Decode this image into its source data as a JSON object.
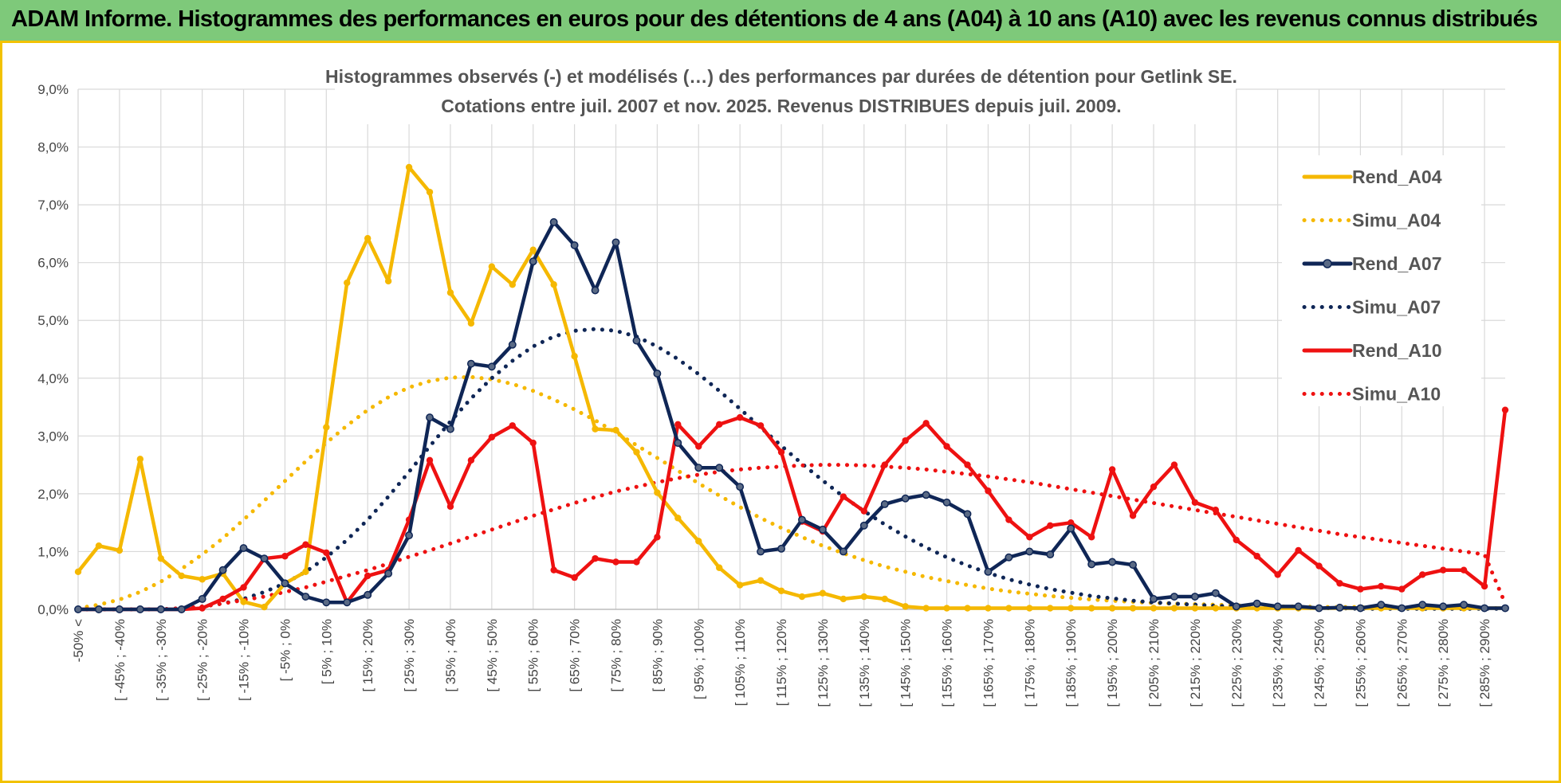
{
  "header": {
    "title": "ADAM Informe. Histogrammes des performances en euros pour des détentions de 4 ans (A04) à 10 ans (A10) avec les revenus connus distribués"
  },
  "colors": {
    "banner": "#7ec97a",
    "frame": "#f2c200",
    "A04": "#f5b800",
    "A07": "#0f2656",
    "A10": "#ee1111",
    "grid": "#d9d9d9"
  },
  "chart_data": {
    "type": "line",
    "title_line1": "Histogrammes observés (-) et modélisés (…) des performances par durées de détention pour Getlink SE.",
    "title_line2": "Cotations entre juil. 2007 et nov. 2025. Revenus DISTRIBUES depuis juil. 2009.",
    "y_unit": "%",
    "ylim": [
      0,
      9
    ],
    "yticks": [
      "0,0%",
      "1,0%",
      "2,0%",
      "3,0%",
      "4,0%",
      "5,0%",
      "6,0%",
      "7,0%",
      "8,0%",
      "9,0%"
    ],
    "x_tick_labels": [
      "-50% <",
      "[ -45% ; -40%",
      "[ -35% ; -30%",
      "[ -25% ; -20%",
      "[ -15% ; -10%",
      "[ -5% ; 0%",
      "[ 5% ; 10%",
      "[ 15% ; 20%",
      "[ 25% ; 30%",
      "[ 35% ; 40%",
      "[ 45% ; 50%",
      "[ 55% ; 60%",
      "[ 65% ; 70%",
      "[ 75% ; 80%",
      "[ 85% ; 90%",
      "[ 95% ; 100%",
      "[ 105% ; 110%",
      "[ 115% ; 120%",
      "[ 125% ; 130%",
      "[ 135% ; 140%",
      "[ 145% ; 150%",
      "[ 155% ; 160%",
      "[ 165% ; 170%",
      "[ 175% ; 180%",
      "[ 185% ; 190%",
      "[ 195% ; 200%",
      "[ 205% ; 210%",
      "[ 215% ; 220%",
      "[ 225% ; 230%",
      "[ 235% ; 240%",
      "[ 245% ; 250%",
      "[ 255% ; 260%",
      "[ 265% ; 270%",
      "[ 275% ; 280%",
      "[ 285% ; 290%"
    ],
    "n_points": 70,
    "legend_position": "right",
    "series": [
      {
        "name": "Rend_A04",
        "style": "solid",
        "color": "#f5b800",
        "markers": false,
        "values": [
          0.65,
          1.1,
          1.02,
          2.6,
          0.88,
          0.58,
          0.52,
          0.62,
          0.13,
          0.04,
          0.45,
          0.65,
          3.15,
          5.65,
          6.42,
          5.68,
          7.65,
          7.22,
          5.48,
          4.95,
          5.93,
          5.62,
          6.22,
          5.62,
          4.38,
          3.12,
          3.1,
          2.72,
          2.02,
          1.58,
          1.18,
          0.72,
          0.42,
          0.5,
          0.32,
          0.22,
          0.28,
          0.18,
          0.22,
          0.18,
          0.05,
          0.02,
          0.02,
          0.02,
          0.02,
          0.02,
          0.02,
          0.02,
          0.02,
          0.02,
          0.02,
          0.02,
          0.02,
          0.02,
          0.02,
          0.02,
          0.02,
          0.02,
          0.02,
          0.02,
          0.02,
          0.02,
          0.02,
          0.02,
          0.02,
          0.02,
          0.02,
          0.02,
          0.02,
          0.02
        ]
      },
      {
        "name": "Simu_A04",
        "style": "dotted",
        "color": "#f5b800",
        "markers": false,
        "values": [
          0.02,
          0.08,
          0.17,
          0.3,
          0.48,
          0.7,
          0.95,
          1.23,
          1.55,
          1.88,
          2.22,
          2.56,
          2.88,
          3.18,
          3.45,
          3.67,
          3.84,
          3.95,
          4.01,
          4.02,
          3.98,
          3.9,
          3.78,
          3.63,
          3.46,
          3.27,
          3.06,
          2.84,
          2.62,
          2.4,
          2.18,
          1.97,
          1.77,
          1.58,
          1.41,
          1.25,
          1.1,
          0.97,
          0.85,
          0.74,
          0.65,
          0.56,
          0.49,
          0.42,
          0.36,
          0.31,
          0.27,
          0.23,
          0.2,
          0.17,
          0.15,
          0.13,
          0.11,
          0.1,
          0.09,
          0.08,
          0.07,
          0.06,
          0.05,
          0.05,
          0.04,
          0.04,
          0.04,
          0.03,
          0.03,
          0.03,
          0.03,
          0.03,
          0.02,
          0.02
        ]
      },
      {
        "name": "Rend_A07",
        "style": "solid",
        "color": "#0f2656",
        "markers": true,
        "values": [
          0,
          0,
          0,
          0,
          0,
          0,
          0.18,
          0.68,
          1.06,
          0.88,
          0.45,
          0.22,
          0.12,
          0.12,
          0.25,
          0.62,
          1.28,
          3.32,
          3.12,
          4.25,
          4.2,
          4.58,
          6.02,
          6.7,
          6.3,
          5.52,
          6.35,
          4.65,
          4.08,
          2.88,
          2.45,
          2.45,
          2.12,
          1.0,
          1.05,
          1.55,
          1.38,
          1.0,
          1.45,
          1.82,
          1.92,
          1.98,
          1.85,
          1.65,
          0.65,
          0.9,
          1.0,
          0.95,
          1.4,
          0.78,
          0.82,
          0.77,
          0.18,
          0.22,
          0.22,
          0.28,
          0.05,
          0.1,
          0.05,
          0.05,
          0.02,
          0.03,
          0.02,
          0.08,
          0.02,
          0.08,
          0.05,
          0.08,
          0.02,
          0.02
        ]
      },
      {
        "name": "Simu_A07",
        "style": "dotted",
        "color": "#0f2656",
        "markers": false,
        "values": [
          0,
          0,
          0,
          0,
          0,
          0.02,
          0.05,
          0.1,
          0.18,
          0.3,
          0.45,
          0.65,
          0.9,
          1.2,
          1.55,
          1.95,
          2.38,
          2.82,
          3.25,
          3.65,
          4.0,
          4.3,
          4.55,
          4.72,
          4.82,
          4.85,
          4.82,
          4.72,
          4.55,
          4.33,
          4.07,
          3.78,
          3.47,
          3.15,
          2.83,
          2.52,
          2.23,
          1.95,
          1.7,
          1.47,
          1.26,
          1.07,
          0.9,
          0.76,
          0.63,
          0.52,
          0.43,
          0.35,
          0.29,
          0.23,
          0.19,
          0.15,
          0.12,
          0.1,
          0.08,
          0.06,
          0.05,
          0.04,
          0.03,
          0.03,
          0.02,
          0.02,
          0.01,
          0.01,
          0.01,
          0.01,
          0.01,
          0.01,
          0.01,
          0.01
        ]
      },
      {
        "name": "Rend_A10",
        "style": "solid",
        "color": "#ee1111",
        "markers": false,
        "values": [
          0,
          0,
          0,
          0,
          0,
          0,
          0.02,
          0.18,
          0.38,
          0.88,
          0.92,
          1.12,
          0.98,
          0.12,
          0.58,
          0.68,
          1.55,
          2.58,
          1.78,
          2.58,
          2.98,
          3.18,
          2.88,
          0.68,
          0.55,
          0.88,
          0.82,
          0.82,
          1.25,
          3.2,
          2.82,
          3.2,
          3.32,
          3.18,
          2.72,
          1.52,
          1.35,
          1.95,
          1.7,
          2.5,
          2.92,
          3.22,
          2.82,
          2.5,
          2.05,
          1.55,
          1.25,
          1.45,
          1.5,
          1.25,
          2.42,
          1.62,
          2.12,
          2.5,
          1.85,
          1.72,
          1.2,
          0.92,
          0.6,
          1.02,
          0.75,
          0.45,
          0.35,
          0.4,
          0.35,
          0.6,
          0.68,
          0.68,
          0.4,
          3.45
        ]
      },
      {
        "name": "Simu_A10",
        "style": "dotted",
        "color": "#ee1111",
        "markers": false,
        "values": [
          0,
          0,
          0,
          0,
          0,
          0.02,
          0.05,
          0.1,
          0.16,
          0.22,
          0.3,
          0.38,
          0.48,
          0.58,
          0.68,
          0.79,
          0.91,
          1.02,
          1.14,
          1.26,
          1.38,
          1.5,
          1.62,
          1.73,
          1.84,
          1.94,
          2.04,
          2.12,
          2.2,
          2.27,
          2.33,
          2.38,
          2.42,
          2.45,
          2.47,
          2.49,
          2.5,
          2.5,
          2.49,
          2.47,
          2.45,
          2.42,
          2.38,
          2.34,
          2.3,
          2.25,
          2.2,
          2.14,
          2.08,
          2.02,
          1.96,
          1.9,
          1.84,
          1.78,
          1.72,
          1.66,
          1.6,
          1.54,
          1.48,
          1.42,
          1.36,
          1.3,
          1.25,
          1.2,
          1.15,
          1.1,
          1.05,
          1.0,
          0.95,
          0.1
        ]
      }
    ]
  }
}
